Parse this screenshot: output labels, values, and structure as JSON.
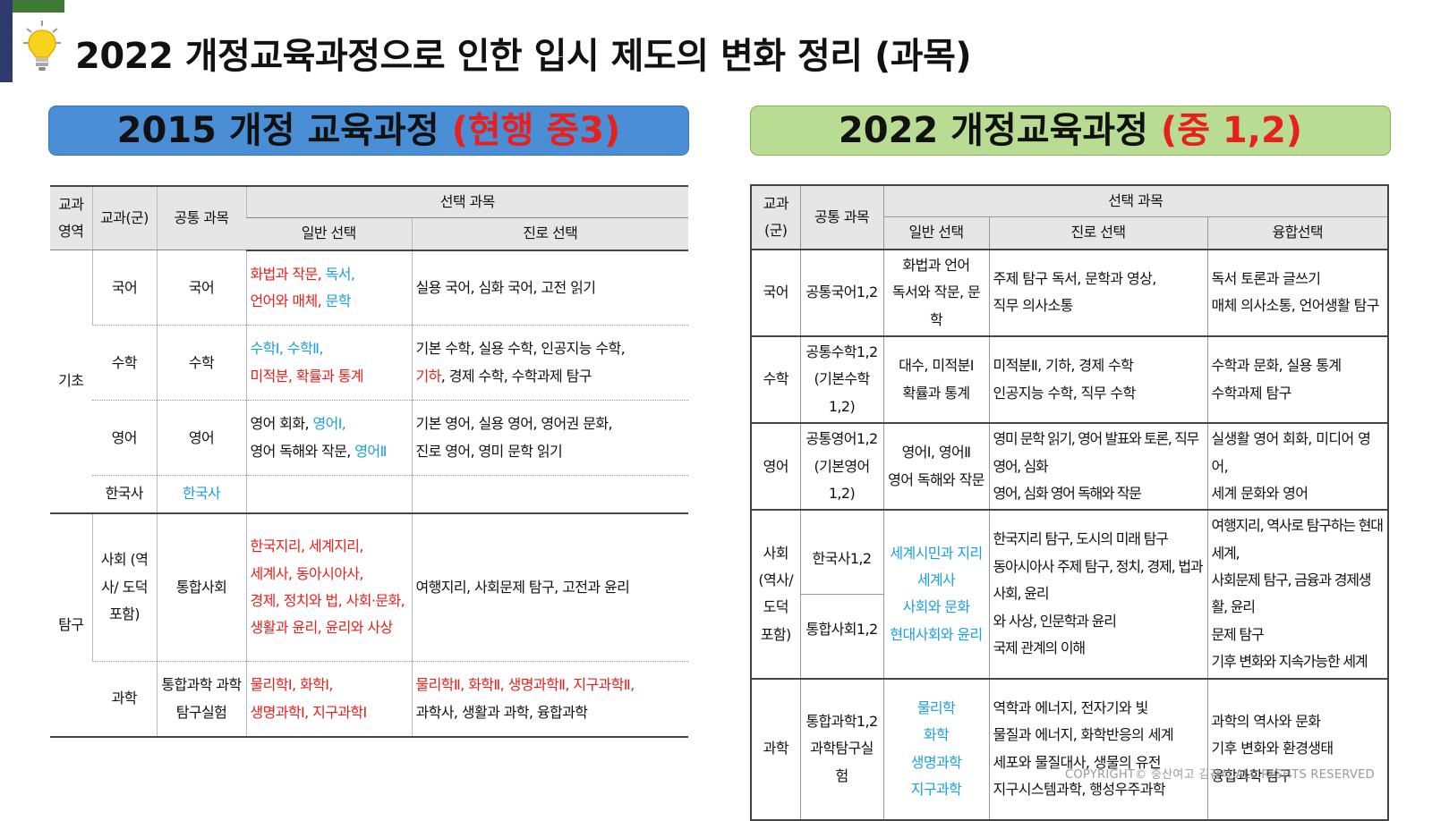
{
  "page": {
    "title": "2022 개정교육과정으로 인한 입시 제도의 변화 정리 (과목)",
    "copyright": "COPYRIGHT© 중산여고 김강석 ALL RIGHTS RESERVED"
  },
  "banner_left": {
    "main": "2015 개정 교육과정 ",
    "highlight": "(현행 중3)"
  },
  "banner_right": {
    "main": "2022 개정교육과정 ",
    "highlight": "(중 1,2)"
  },
  "t2015": {
    "h_area": "교과 영역",
    "h_group": "교과(군)",
    "h_common": "공통 과목",
    "h_elective": "선택 과목",
    "h_general": "일반 선택",
    "h_career": "진로 선택",
    "area_basic": "기초",
    "area_inquiry": "탐구",
    "korean": {
      "group": "국어",
      "common": "국어",
      "general_1": "화법과 작문",
      "general_2": ", ",
      "general_3": "독서,",
      "general_4": "언어와 매체",
      "general_5": ", ",
      "general_6": "문학",
      "career": "실용 국어, 심화 국어, 고전 읽기"
    },
    "math": {
      "group": "수학",
      "common": "수학",
      "general_1": "수학Ⅰ, 수학Ⅱ,",
      "general_2": "미적분, 확률과 통계",
      "career_1": "기본 수학, 실용 수학, 인공지능 수학,",
      "career_2": "기하",
      "career_3": ", 경제 수학, 수학과제 탐구"
    },
    "english": {
      "group": "영어",
      "common": "영어",
      "general_1": "영어 회화, ",
      "general_2": "영어Ⅰ,",
      "general_3": "영어 독해와 작문, ",
      "general_4": "영어Ⅱ",
      "career_1": "기본 영어, 실용 영어, 영어권 문화,",
      "career_2": "진로 영어, 영미 문학 읽기"
    },
    "history": {
      "group": "한국사",
      "common": "한국사"
    },
    "social": {
      "group": "사회 (역사/ 도덕포함)",
      "common": "통합사회",
      "general_1": "한국지리, 세계지리,",
      "general_2": "세계사, 동아시아사,",
      "general_3": "경제, 정치와 법, 사회·문화,",
      "general_4": "생활과 윤리, 윤리와 사상",
      "career": "여행지리, 사회문제 탐구, 고전과 윤리"
    },
    "science": {
      "group": "과학",
      "common": "통합과학 과학탐구실험",
      "general_1": "물리학Ⅰ, 화학Ⅰ,",
      "general_2": "생명과학Ⅰ, 지구과학Ⅰ",
      "career_1": "물리학Ⅱ, 화학Ⅱ, 생명과학Ⅱ, 지구과학Ⅱ,",
      "career_2": "과학사, 생활과 과학, 융합과학"
    }
  },
  "t2022": {
    "h_group": "교과(군)",
    "h_common": "공통 과목",
    "h_elective": "선택 과목",
    "h_general": "일반 선택",
    "h_career": "진로 선택",
    "h_fusion": "융합선택",
    "korean": {
      "group": "국어",
      "common": "공통국어1,2",
      "general_1": "화법과 언어",
      "general_2": "독서와 작문, 문학",
      "career_1": "주제 탐구 독서, 문학과 영상,",
      "career_2": "직무 의사소통",
      "fusion_1": "독서 토론과 글쓰기",
      "fusion_2": "매체 의사소통, 언어생활 탐구"
    },
    "math": {
      "group": "수학",
      "common_1": "공통수학1,2",
      "common_2": "(기본수학1,2)",
      "general_1": "대수, 미적분Ⅰ",
      "general_2": "확률과 통계",
      "career_1": "미적분Ⅱ, 기하, 경제 수학",
      "career_2": "인공지능 수학, 직무 수학",
      "fusion_1": "수학과 문화, 실용 통계",
      "fusion_2": "수학과제 탐구"
    },
    "english": {
      "group": "영어",
      "common_1": "공통영어1,2",
      "common_2": "(기본영어1,2)",
      "general_1": "영어Ⅰ, 영어Ⅱ",
      "general_2": "영어 독해와 작문",
      "career_1": "영미 문학 읽기, 영어 발표와 토론, 직무 영어, 심화",
      "career_2": "영어, 심화 영어 독해와 작문",
      "fusion_1": "실생활 영어 회화, 미디어 영어,",
      "fusion_2": "세계 문화와 영어"
    },
    "social": {
      "group": "사회 (역사/ 도덕 포함)",
      "common_1": "한국사1,2",
      "common_2": "통합사회1,2",
      "general_1": "세계시민과 지리",
      "general_2": "세계사",
      "general_3": "사회와 문화",
      "general_4": "현대사회와 윤리",
      "career_1": "한국지리 탐구, 도시의 미래 탐구",
      "career_2": "동아시아사 주제 탐구, 정치, 경제, 법과 사회, 윤리",
      "career_3": "와 사상, 인문학과 윤리",
      "career_4": "국제 관계의 이해",
      "fusion_1": "여행지리, 역사로 탐구하는 현대 세계,",
      "fusion_2": "사회문제 탐구, 금융과 경제생활, 윤리",
      "fusion_3": "문제 탐구",
      "fusion_4": "기후 변화와 지속가능한 세계"
    },
    "science": {
      "group": "과학",
      "common_1": "통합과학1,2",
      "common_2": "과학탐구실험",
      "general_1": "물리학",
      "general_2": "화학",
      "general_3": "생명과학",
      "general_4": "지구과학",
      "career_1": "역학과 에너지, 전자기와 빛",
      "career_2": "물질과 에너지, 화학반응의 세계",
      "career_3": "세포와 물질대사, 생물의 유전",
      "career_4": "지구시스템과학, 행성우주과학",
      "fusion_1": "과학의 역사와 문화",
      "fusion_2": "기후 변화와 환경생태",
      "fusion_3": "융합과학 탐구"
    }
  },
  "colors": {
    "highlight_red": "#e8201c",
    "highlight_blue": "#1aa0e0",
    "banner_blue": "#4a8fd6",
    "banner_green": "#b9dc95"
  },
  "icons": [
    "lightbulb-icon"
  ]
}
